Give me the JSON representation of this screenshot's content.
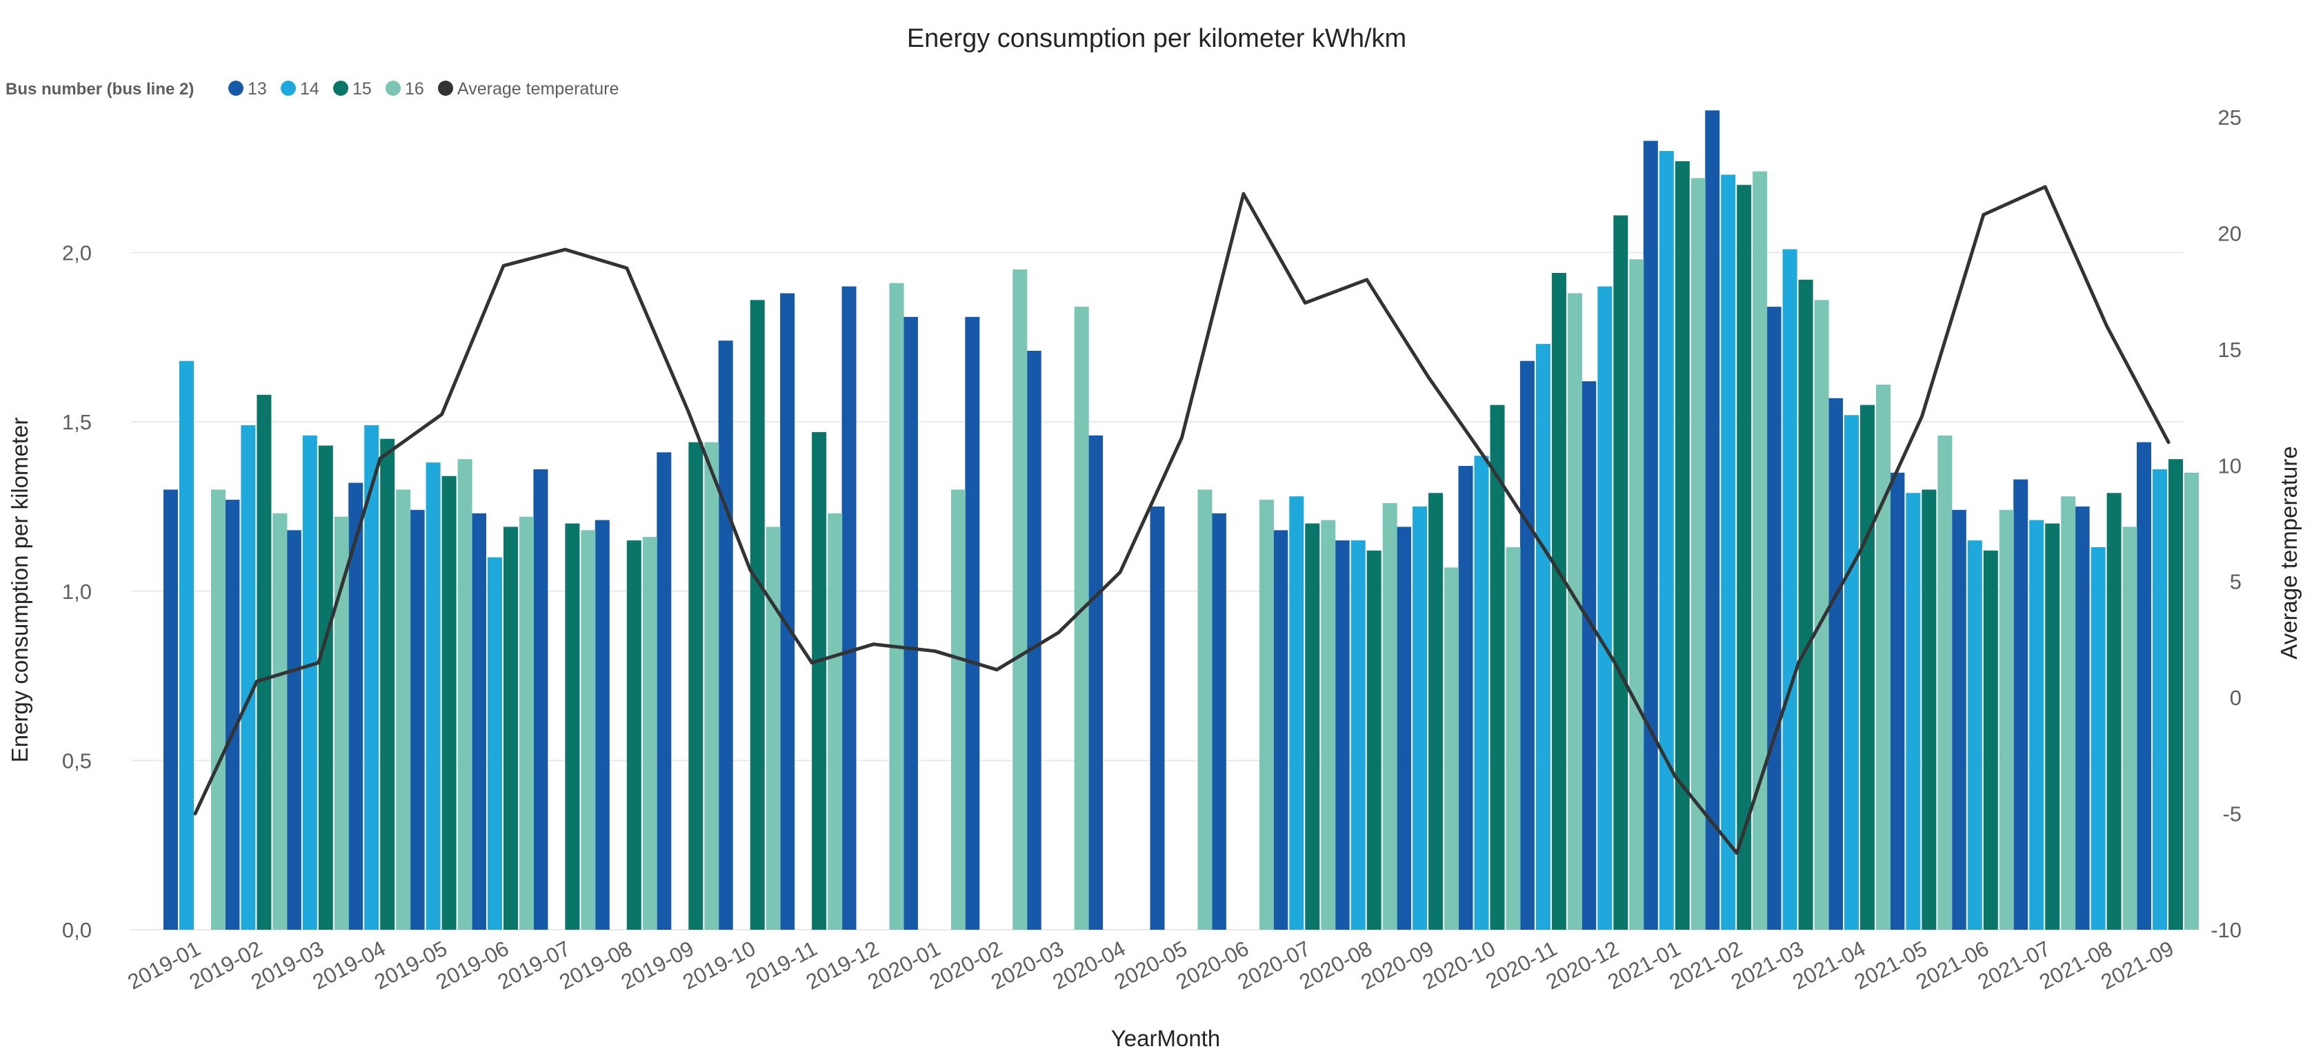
{
  "chart_data": {
    "type": "bar",
    "title": "Energy consumption per kilometer kWh/km",
    "legend": {
      "title": "Bus number (bus line 2)",
      "position": "top-left",
      "items": [
        "13",
        "14",
        "15",
        "16",
        "Average temperature"
      ]
    },
    "xlabel": "YearMonth",
    "ylabel": "Energy consumption per kilometer",
    "y2label": "Average temperature",
    "ylim": [
      0,
      2.4
    ],
    "y2lim": [
      -10,
      25
    ],
    "yticks": [
      "0,0",
      "0,5",
      "1,0",
      "1,5",
      "2,0"
    ],
    "yticks_values": [
      0,
      0.5,
      1.0,
      1.5,
      2.0
    ],
    "y2ticks": [
      "-10",
      "-5",
      "0",
      "5",
      "10",
      "15",
      "20",
      "25"
    ],
    "y2ticks_values": [
      -10,
      -5,
      0,
      5,
      10,
      15,
      20,
      25
    ],
    "grid": true,
    "categories": [
      "2019-01",
      "2019-02",
      "2019-03",
      "2019-04",
      "2019-05",
      "2019-06",
      "2019-07",
      "2019-08",
      "2019-09",
      "2019-10",
      "2019-11",
      "2019-12",
      "2020-01",
      "2020-02",
      "2020-03",
      "2020-04",
      "2020-05",
      "2020-06",
      "2020-07",
      "2020-08",
      "2020-09",
      "2020-10",
      "2020-11",
      "2020-12",
      "2021-01",
      "2021-02",
      "2021-03",
      "2021-04",
      "2021-05",
      "2021-06",
      "2021-07",
      "2021-08",
      "2021-09"
    ],
    "series": [
      {
        "name": "13",
        "color": "#1659a8",
        "values": [
          1.3,
          1.27,
          1.18,
          1.32,
          1.24,
          1.23,
          1.36,
          1.21,
          1.41,
          1.74,
          1.88,
          1.9,
          1.81,
          1.81,
          1.71,
          1.46,
          1.25,
          1.23,
          1.18,
          1.15,
          1.19,
          1.37,
          1.68,
          1.62,
          2.33,
          2.42,
          1.84,
          1.57,
          1.35,
          1.24,
          1.33,
          1.25,
          1.44
        ]
      },
      {
        "name": "14",
        "color": "#1fa8db",
        "values": [
          1.68,
          1.49,
          1.46,
          1.49,
          1.38,
          1.1,
          null,
          null,
          null,
          null,
          null,
          null,
          null,
          null,
          null,
          null,
          null,
          null,
          1.28,
          1.15,
          1.25,
          1.4,
          1.73,
          1.9,
          2.3,
          2.23,
          2.01,
          1.52,
          1.29,
          1.15,
          1.21,
          1.13,
          1.36
        ]
      },
      {
        "name": "15",
        "color": "#0a7669",
        "values": [
          null,
          1.58,
          1.43,
          1.45,
          1.34,
          1.19,
          1.2,
          1.15,
          1.44,
          1.86,
          1.47,
          null,
          null,
          null,
          null,
          null,
          null,
          null,
          1.2,
          1.12,
          1.29,
          1.55,
          1.94,
          2.11,
          2.27,
          2.2,
          1.92,
          1.55,
          1.3,
          1.12,
          1.2,
          1.29,
          1.39
        ]
      },
      {
        "name": "16",
        "color": "#7ac5b4",
        "values": [
          1.3,
          1.23,
          1.22,
          1.3,
          1.39,
          1.22,
          1.18,
          1.16,
          1.44,
          1.19,
          1.23,
          1.91,
          1.3,
          1.95,
          1.84,
          null,
          1.3,
          1.27,
          1.21,
          1.26,
          1.07,
          1.13,
          1.88,
          1.98,
          2.22,
          2.24,
          1.86,
          1.61,
          1.46,
          1.24,
          1.28,
          1.19,
          1.35
        ]
      }
    ],
    "line_series": {
      "name": "Average temperature",
      "color": "#333333",
      "axis": "y2",
      "values": [
        -5.0,
        0.7,
        1.5,
        10.3,
        12.2,
        18.6,
        19.3,
        18.5,
        12.3,
        5.5,
        1.5,
        2.3,
        2.0,
        1.2,
        2.8,
        5.4,
        11.2,
        21.7,
        17.0,
        18.0,
        13.8,
        10.0,
        5.9,
        1.6,
        -3.4,
        -6.7,
        1.5,
        6.3,
        12.1,
        20.8,
        22.0,
        16.0,
        11.0
      ]
    }
  }
}
